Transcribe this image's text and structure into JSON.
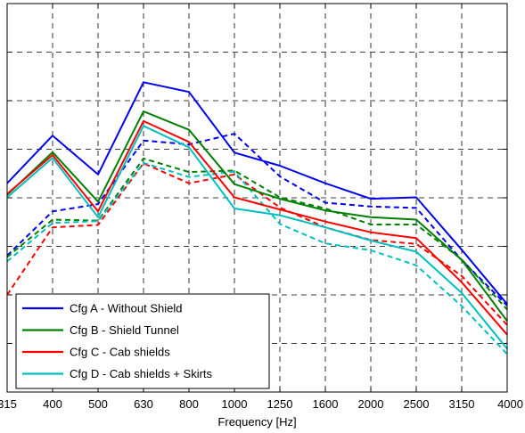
{
  "chart_data": {
    "type": "line",
    "xlabel": "Frequency [Hz]",
    "ylabel": "",
    "title": "",
    "categories": [
      "315",
      "400",
      "500",
      "630",
      "800",
      "1000",
      "1250",
      "1600",
      "2000",
      "2500",
      "3150",
      "4000"
    ],
    "ylim": [
      0,
      8
    ],
    "grid": true,
    "grid_style": "dashed",
    "legend_position": "bottom-left",
    "legend": [
      {
        "label": "Cfg A - Without Shield",
        "color": "#0000ee"
      },
      {
        "label": "Cfg B - Shield Tunnel",
        "color": "#008000"
      },
      {
        "label": "Cfg C - Cab shields",
        "color": "#ff0000"
      },
      {
        "label": "Cfg D - Cab shields + Skirts",
        "color": "#00bfbf"
      }
    ],
    "series": [
      {
        "name": "Cfg A - Without Shield",
        "color": "#0000ee",
        "dash": "solid",
        "values": [
          4.3,
          5.28,
          4.48,
          6.38,
          6.18,
          4.93,
          4.66,
          4.3,
          3.98,
          4.01,
          2.93,
          1.81
        ]
      },
      {
        "name": "Cfg B - Shield Tunnel",
        "color": "#008000",
        "dash": "solid",
        "values": [
          4.06,
          4.94,
          3.92,
          5.78,
          5.4,
          4.28,
          3.98,
          3.74,
          3.6,
          3.55,
          2.72,
          1.46
        ]
      },
      {
        "name": "Cfg C - Cab shields",
        "color": "#ff0000",
        "dash": "solid",
        "values": [
          4.08,
          4.88,
          3.72,
          5.58,
          5.15,
          4.01,
          3.76,
          3.51,
          3.29,
          3.17,
          2.26,
          1.18
        ]
      },
      {
        "name": "Cfg D - Cab shields + Skirts",
        "color": "#00bfbf",
        "dash": "solid",
        "values": [
          4.01,
          4.82,
          3.6,
          5.48,
          5.04,
          3.78,
          3.64,
          3.39,
          3.12,
          2.89,
          2.04,
          0.89
        ]
      },
      {
        "name": "",
        "color": "#0000ee",
        "dash": "dashed",
        "values": [
          2.81,
          3.72,
          3.87,
          5.18,
          5.1,
          5.32,
          4.44,
          3.9,
          3.82,
          3.79,
          2.72,
          1.78
        ]
      },
      {
        "name": "",
        "color": "#008000",
        "dash": "dashed",
        "values": [
          2.78,
          3.55,
          3.53,
          4.81,
          4.53,
          4.56,
          4.01,
          3.78,
          3.45,
          3.45,
          2.73,
          1.7
        ]
      },
      {
        "name": "",
        "color": "#ff0000",
        "dash": "dashed",
        "values": [
          2.0,
          3.39,
          3.44,
          4.71,
          4.3,
          4.48,
          3.8,
          3.39,
          3.13,
          3.05,
          2.39,
          1.38
        ]
      },
      {
        "name": "",
        "color": "#00bfbf",
        "dash": "dashed",
        "values": [
          2.69,
          3.48,
          3.52,
          4.72,
          4.43,
          4.54,
          3.46,
          3.06,
          2.92,
          2.61,
          1.77,
          0.78
        ]
      }
    ]
  }
}
